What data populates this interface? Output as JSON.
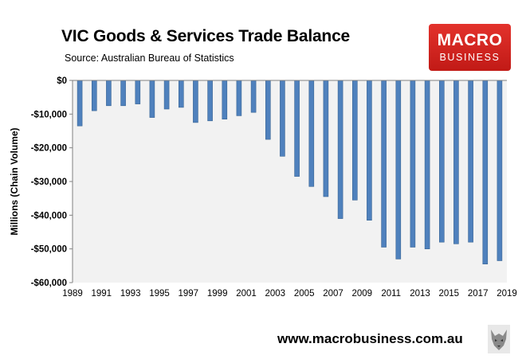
{
  "header": {
    "title": "VIC Goods & Services Trade Balance",
    "source": "Source:  Australian Bureau of Statistics"
  },
  "logo": {
    "line1": "MACRO",
    "line2": "BUSINESS",
    "bg_color": "#d42620"
  },
  "footer": {
    "url": "www.macrobusiness.com.au"
  },
  "colors": {
    "bar": "#4f81bd",
    "plot_bg": "#f2f2f2"
  },
  "chart_data": {
    "type": "bar",
    "title": "VIC Goods & Services Trade Balance",
    "xlabel": "",
    "ylabel": "Millions (Chain Volume)",
    "ylim": [
      -60000,
      0
    ],
    "yticks": [
      0,
      -10000,
      -20000,
      -30000,
      -40000,
      -50000,
      -60000
    ],
    "ytick_labels": [
      "$0",
      "-$10,000",
      "-$20,000",
      "-$30,000",
      "-$40,000",
      "-$50,000",
      "-$60,000"
    ],
    "xtick_labels": [
      "1989",
      "1991",
      "1993",
      "1995",
      "1997",
      "1999",
      "2001",
      "2003",
      "2005",
      "2007",
      "2009",
      "2011",
      "2013",
      "2015",
      "2017",
      "2019"
    ],
    "categories": [
      1990,
      1991,
      1992,
      1993,
      1994,
      1995,
      1996,
      1997,
      1998,
      1999,
      2000,
      2001,
      2002,
      2003,
      2004,
      2005,
      2006,
      2007,
      2008,
      2009,
      2010,
      2011,
      2012,
      2013,
      2014,
      2015,
      2016,
      2017,
      2018,
      2019
    ],
    "values": [
      -13500,
      -9000,
      -7500,
      -7500,
      -7000,
      -11000,
      -8500,
      -8000,
      -12500,
      -12000,
      -11500,
      -10500,
      -9500,
      -17500,
      -22500,
      -28500,
      -31500,
      -34500,
      -41000,
      -35500,
      -41500,
      -49500,
      -53000,
      -49500,
      -50000,
      -48000,
      -48500,
      -48000,
      -54500,
      -53500
    ],
    "grid": false,
    "legend": "none"
  }
}
